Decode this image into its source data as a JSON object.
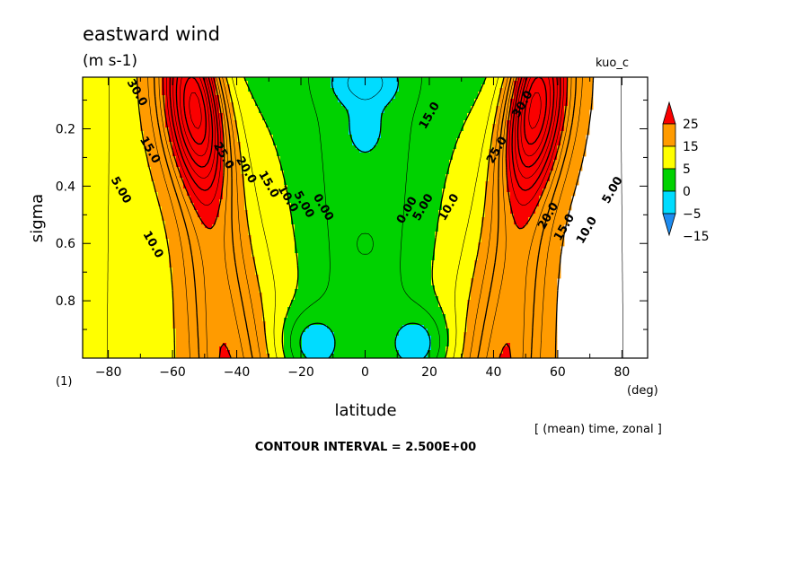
{
  "chart_data": {
    "type": "heatmap",
    "title": "eastward wind",
    "units": "(m s-1)",
    "top_right_label": "kuo_c",
    "xlabel": "latitude",
    "ylabel": "sigma",
    "x_unit_label": "(deg)",
    "bottom_left_label": "(1)",
    "averaging_note": "[ (mean) time, zonal ]",
    "contour_interval_text": "CONTOUR INTERVAL = 2.500E+00",
    "contour_interval": 2.5,
    "xlim": [
      -88,
      88
    ],
    "ylim": [
      1.0,
      0.02
    ],
    "x_ticks": [
      -80,
      -60,
      -40,
      -20,
      0,
      20,
      40,
      60,
      80
    ],
    "x_tick_labels": [
      "−80",
      "−60",
      "−40",
      "−20",
      "0",
      "20",
      "40",
      "60",
      "80"
    ],
    "y_ticks": [
      0.2,
      0.4,
      0.6,
      0.8
    ],
    "y_tick_labels": [
      "0.2",
      "0.4",
      "0.6",
      "0.8"
    ],
    "colorbar": {
      "labels": [
        "25",
        "15",
        "5",
        "0",
        "−5",
        "−15"
      ],
      "levels": [
        -20,
        -15,
        -5,
        0,
        5,
        15,
        25
      ],
      "colors": [
        "#1e8cf0",
        "#00dcff",
        "#00d200",
        "#ffff00",
        "#ff9b00",
        "#fa0000"
      ]
    },
    "jets": [
      {
        "lat": -53,
        "sigma_core": 0.13,
        "max_wind": 33
      },
      {
        "lat": 53,
        "sigma_core": 0.13,
        "max_wind": 33
      }
    ],
    "contour_labels": [
      {
        "text": "30.0",
        "lat": -72,
        "sigma": 0.08
      },
      {
        "text": "25.0",
        "lat": -45,
        "sigma": 0.3
      },
      {
        "text": "20.0",
        "lat": -38,
        "sigma": 0.35
      },
      {
        "text": "15.0",
        "lat": -31,
        "sigma": 0.4
      },
      {
        "text": "10.0",
        "lat": -25,
        "sigma": 0.45
      },
      {
        "text": "5.00",
        "lat": -20,
        "sigma": 0.47
      },
      {
        "text": "0.00",
        "lat": -14,
        "sigma": 0.48
      },
      {
        "text": "15.0",
        "lat": -68,
        "sigma": 0.28
      },
      {
        "text": "5.00",
        "lat": -77,
        "sigma": 0.42
      },
      {
        "text": "10.0",
        "lat": -67,
        "sigma": 0.61
      },
      {
        "text": "15.0",
        "lat": 21,
        "sigma": 0.16
      },
      {
        "text": "30.0",
        "lat": 50,
        "sigma": 0.12
      },
      {
        "text": "25.0",
        "lat": 42,
        "sigma": 0.28
      },
      {
        "text": "0.00",
        "lat": 14,
        "sigma": 0.49
      },
      {
        "text": "5.00",
        "lat": 19,
        "sigma": 0.48
      },
      {
        "text": "10.0",
        "lat": 27,
        "sigma": 0.48
      },
      {
        "text": "20.0",
        "lat": 58,
        "sigma": 0.51
      },
      {
        "text": "15.0",
        "lat": 63,
        "sigma": 0.55
      },
      {
        "text": "10.0",
        "lat": 70,
        "sigma": 0.56
      },
      {
        "text": "5.00",
        "lat": 78,
        "sigma": 0.42
      }
    ]
  }
}
